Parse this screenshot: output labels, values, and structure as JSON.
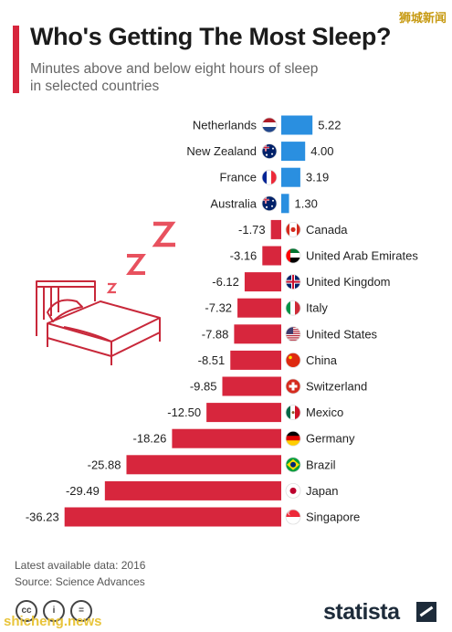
{
  "header": {
    "title": "Who's Getting The Most Sleep?",
    "subtitle": "Minutes above and below eight hours of sleep in selected countries"
  },
  "watermark_top": "狮城新闻",
  "watermark_bottom": "shicheng.news",
  "footer": {
    "note": "Latest available data: 2016",
    "source": "Source: Science Advances",
    "logo_text": "statista"
  },
  "colors": {
    "positive": "#2a8fe0",
    "negative": "#d7263d",
    "accent": "#d7263d"
  },
  "chart_data": {
    "type": "bar",
    "orientation": "horizontal",
    "categories": [
      "Netherlands",
      "New Zealand",
      "France",
      "Australia",
      "Canada",
      "United Arab Emirates",
      "United Kingdom",
      "Italy",
      "United States",
      "China",
      "Switzerland",
      "Mexico",
      "Germany",
      "Brazil",
      "Japan",
      "Singapore"
    ],
    "values": [
      5.22,
      4.0,
      3.19,
      1.3,
      -1.73,
      -3.16,
      -6.12,
      -7.32,
      -7.88,
      -8.51,
      -9.85,
      -12.5,
      -18.26,
      -25.88,
      -29.49,
      -36.23
    ],
    "labels": [
      "5.22",
      "4.00",
      "3.19",
      "1.30",
      "-1.73",
      "-3.16",
      "-6.12",
      "-7.32",
      "-7.88",
      "-8.51",
      "-9.85",
      "-12.50",
      "-18.26",
      "-25.88",
      "-29.49",
      "-36.23"
    ],
    "flags": [
      "netherlands-flag-icon",
      "new-zealand-flag-icon",
      "france-flag-icon",
      "australia-flag-icon",
      "canada-flag-icon",
      "uae-flag-icon",
      "uk-flag-icon",
      "italy-flag-icon",
      "usa-flag-icon",
      "china-flag-icon",
      "switzerland-flag-icon",
      "mexico-flag-icon",
      "germany-flag-icon",
      "brazil-flag-icon",
      "japan-flag-icon",
      "singapore-flag-icon"
    ],
    "xlim": [
      -36.23,
      5.22
    ]
  }
}
